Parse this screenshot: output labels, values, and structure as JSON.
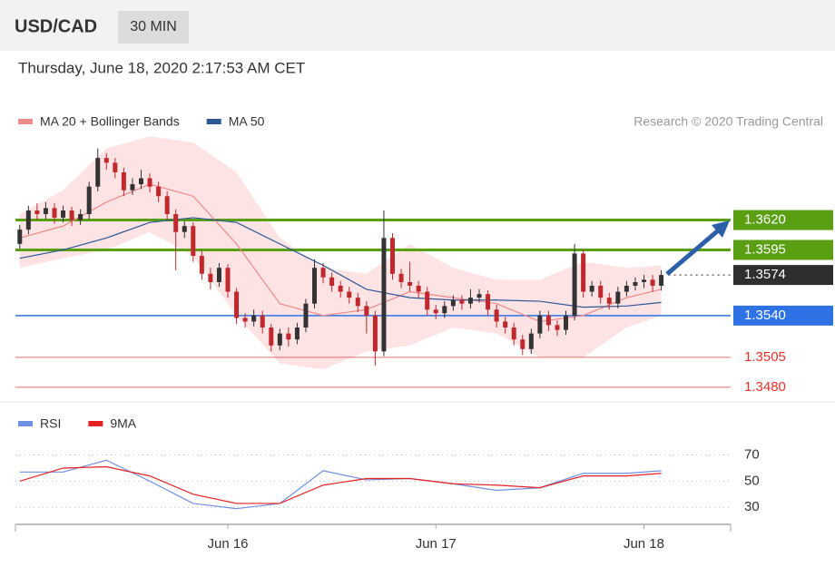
{
  "header": {
    "symbol": "USD/CAD",
    "interval": "30 MIN",
    "timestamp": "Thursday, June 18, 2020 2:17:53 AM CET"
  },
  "chart_data": [
    {
      "type": "candlestick",
      "credit": "Research © 2020 Trading Central",
      "xlim": [
        -0.5,
        82
      ],
      "ylim": [
        1.347,
        1.3685
      ],
      "up_color": "#333333",
      "down_color": "#c0282d",
      "open": [
        1.36,
        1.3612,
        1.3628,
        1.3625,
        1.363,
        1.3622,
        1.3628,
        1.362,
        1.3625,
        1.3648,
        1.3672,
        1.3668,
        1.366,
        1.3645,
        1.365,
        1.3655,
        1.3648,
        1.364,
        1.3625,
        1.361,
        1.3615,
        1.359,
        1.3575,
        1.3568,
        1.358,
        1.356,
        1.3538,
        1.3535,
        1.354,
        1.353,
        1.3515,
        1.3525,
        1.352,
        1.353,
        1.355,
        1.358,
        1.3572,
        1.3565,
        1.356,
        1.3555,
        1.3548,
        1.354,
        1.351,
        1.3605,
        1.3575,
        1.3568,
        1.3565,
        1.356,
        1.3545,
        1.3542,
        1.3548,
        1.3553,
        1.355,
        1.3555,
        1.3558,
        1.3545,
        1.3535,
        1.353,
        1.352,
        1.3512,
        1.3525,
        1.354,
        1.3532,
        1.3528,
        1.354,
        1.3592,
        1.356,
        1.3565,
        1.3555,
        1.355,
        1.356,
        1.3565,
        1.3568,
        1.357,
        1.3565
      ],
      "high": [
        1.3616,
        1.3632,
        1.3634,
        1.3635,
        1.3634,
        1.3632,
        1.3631,
        1.3629,
        1.3652,
        1.368,
        1.3676,
        1.3672,
        1.3664,
        1.3655,
        1.3662,
        1.3659,
        1.3652,
        1.3644,
        1.3629,
        1.3619,
        1.3618,
        1.3594,
        1.358,
        1.3584,
        1.3583,
        1.3563,
        1.3542,
        1.3545,
        1.3544,
        1.3533,
        1.3529,
        1.353,
        1.3534,
        1.3554,
        1.3587,
        1.3584,
        1.3576,
        1.3569,
        1.3564,
        1.3559,
        1.3552,
        1.3544,
        1.3628,
        1.3609,
        1.3579,
        1.3585,
        1.3569,
        1.3564,
        1.3549,
        1.3552,
        1.3557,
        1.3557,
        1.3562,
        1.3562,
        1.3561,
        1.3549,
        1.3539,
        1.3534,
        1.3524,
        1.3529,
        1.3544,
        1.3544,
        1.3536,
        1.3544,
        1.36,
        1.3595,
        1.3569,
        1.3569,
        1.3559,
        1.3564,
        1.3569,
        1.3572,
        1.3574,
        1.3574,
        1.3578
      ],
      "low": [
        1.3596,
        1.3608,
        1.362,
        1.3621,
        1.3617,
        1.3618,
        1.3615,
        1.3616,
        1.3621,
        1.3644,
        1.3662,
        1.3655,
        1.364,
        1.3641,
        1.3646,
        1.3643,
        1.3635,
        1.362,
        1.3578,
        1.3605,
        1.3585,
        1.357,
        1.3562,
        1.3564,
        1.3555,
        1.3533,
        1.353,
        1.3531,
        1.3525,
        1.351,
        1.3511,
        1.3514,
        1.3516,
        1.3526,
        1.3546,
        1.3567,
        1.356,
        1.3555,
        1.355,
        1.3543,
        1.3525,
        1.3498,
        1.3506,
        1.357,
        1.3563,
        1.356,
        1.3555,
        1.354,
        1.3537,
        1.3538,
        1.3544,
        1.3545,
        1.3546,
        1.3551,
        1.354,
        1.353,
        1.3525,
        1.3515,
        1.3507,
        1.3508,
        1.3521,
        1.3527,
        1.3523,
        1.3524,
        1.3536,
        1.3555,
        1.3556,
        1.355,
        1.3545,
        1.3546,
        1.3556,
        1.3561,
        1.3563,
        1.356,
        1.3561
      ],
      "close": [
        1.3612,
        1.3628,
        1.3625,
        1.363,
        1.3622,
        1.3628,
        1.362,
        1.3625,
        1.3648,
        1.3672,
        1.3668,
        1.366,
        1.3645,
        1.365,
        1.3655,
        1.3648,
        1.364,
        1.3625,
        1.361,
        1.3615,
        1.359,
        1.3575,
        1.3568,
        1.358,
        1.356,
        1.3538,
        1.3535,
        1.354,
        1.353,
        1.3515,
        1.3525,
        1.352,
        1.353,
        1.355,
        1.358,
        1.3572,
        1.3565,
        1.356,
        1.3555,
        1.3548,
        1.354,
        1.351,
        1.3605,
        1.3575,
        1.3568,
        1.3565,
        1.356,
        1.3545,
        1.3542,
        1.3548,
        1.3553,
        1.355,
        1.3555,
        1.3558,
        1.3545,
        1.3535,
        1.353,
        1.352,
        1.3512,
        1.3525,
        1.354,
        1.3532,
        1.3528,
        1.354,
        1.3592,
        1.356,
        1.3565,
        1.3555,
        1.355,
        1.356,
        1.3565,
        1.3568,
        1.357,
        1.3565,
        1.3574
      ],
      "overlays": [
        {
          "name": "MA 20 + Bollinger Bands",
          "color": "#f08a8a",
          "band_color": "#fde3e3",
          "x": [
            0,
            5,
            10,
            15,
            20,
            25,
            30,
            35,
            40,
            45,
            50,
            55,
            60,
            65,
            70,
            74
          ],
          "values": [
            1.3605,
            1.3615,
            1.3635,
            1.365,
            1.364,
            1.36,
            1.355,
            1.354,
            1.3545,
            1.356,
            1.3555,
            1.355,
            1.3535,
            1.354,
            1.3555,
            1.3562
          ],
          "upper": [
            1.3625,
            1.3645,
            1.368,
            1.369,
            1.3685,
            1.366,
            1.3605,
            1.358,
            1.3575,
            1.36,
            1.358,
            1.357,
            1.357,
            1.3585,
            1.358,
            1.3582
          ],
          "lower": [
            1.358,
            1.3588,
            1.3595,
            1.361,
            1.359,
            1.354,
            1.35,
            1.3495,
            1.351,
            1.3515,
            1.353,
            1.3525,
            1.3505,
            1.3505,
            1.353,
            1.354
          ]
        },
        {
          "name": "MA 50",
          "color": "#2b5797",
          "x": [
            0,
            5,
            10,
            15,
            20,
            25,
            30,
            35,
            40,
            45,
            50,
            55,
            60,
            65,
            70,
            74
          ],
          "values": [
            1.3588,
            1.3595,
            1.3605,
            1.3618,
            1.3622,
            1.3618,
            1.36,
            1.3582,
            1.3562,
            1.3555,
            1.3553,
            1.3553,
            1.3552,
            1.3547,
            1.3548,
            1.3551
          ]
        }
      ],
      "levels": [
        {
          "value": 1.362,
          "label": "1.3620",
          "color": "#5a9e12",
          "kind": "box"
        },
        {
          "value": 1.3595,
          "label": "1.3595",
          "color": "#5a9e12",
          "kind": "box"
        },
        {
          "value": 1.3574,
          "label": "1.3574",
          "color": "#2e2e2e",
          "kind": "current"
        },
        {
          "value": 1.354,
          "label": "1.3540",
          "color": "#2f72e6",
          "kind": "box"
        },
        {
          "value": 1.3505,
          "label": "1.3505",
          "color": "#e8312a",
          "kind": "text"
        },
        {
          "value": 1.348,
          "label": "1.3480",
          "color": "#e8312a",
          "kind": "text"
        }
      ]
    },
    {
      "type": "line",
      "xlim": [
        -0.5,
        82
      ],
      "ylim": [
        17,
        78
      ],
      "yticks": [
        30,
        50,
        70
      ],
      "xticks": [
        {
          "value": 24,
          "label": "Jun 16"
        },
        {
          "value": 48,
          "label": "Jun 17"
        },
        {
          "value": 72,
          "label": "Jun 18"
        }
      ],
      "series": [
        {
          "name": "RSI",
          "color": "#6f8fe0",
          "x": [
            0,
            5,
            10,
            15,
            20,
            25,
            30,
            35,
            40,
            45,
            50,
            55,
            60,
            65,
            70,
            74
          ],
          "values": [
            57,
            57,
            66,
            50,
            33,
            29,
            33,
            58,
            51,
            52,
            48,
            43,
            45,
            56,
            56,
            58
          ]
        },
        {
          "name": "9MA",
          "color": "#e52222",
          "x": [
            0,
            5,
            10,
            15,
            20,
            25,
            30,
            35,
            40,
            45,
            50,
            55,
            60,
            65,
            70,
            74
          ],
          "values": [
            50,
            60,
            61,
            54,
            40,
            33,
            33,
            47,
            52,
            52,
            48,
            47,
            45,
            54,
            54,
            56
          ]
        }
      ]
    }
  ]
}
